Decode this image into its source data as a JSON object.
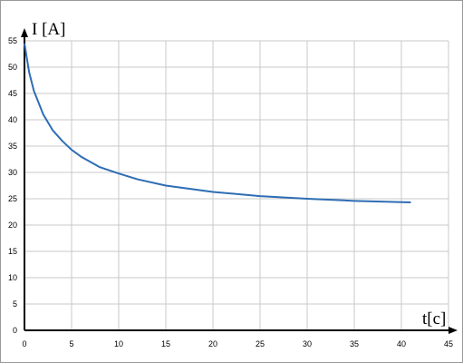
{
  "chart_data": {
    "type": "line",
    "x_label": "t[c]",
    "y_label": "I [A]",
    "x": [
      0,
      0.5,
      1,
      2,
      3,
      4,
      5,
      6,
      8,
      10,
      12,
      15,
      20,
      25,
      30,
      35,
      41
    ],
    "series": [
      {
        "name": "I",
        "color": "#2e6db4",
        "values": [
          54.5,
          49,
          45.5,
          41,
          38,
          36,
          34.3,
          33,
          31,
          29.8,
          28.7,
          27.5,
          26.3,
          25.5,
          25,
          24.6,
          24.3
        ]
      }
    ],
    "xlim": [
      0,
      45
    ],
    "xticks": [
      0,
      5,
      10,
      15,
      20,
      25,
      30,
      35,
      40,
      45
    ],
    "ylim": [
      0,
      55
    ],
    "yticks": [
      0,
      5,
      10,
      15,
      20,
      25,
      30,
      35,
      40,
      45,
      50,
      55
    ],
    "grid": true
  }
}
